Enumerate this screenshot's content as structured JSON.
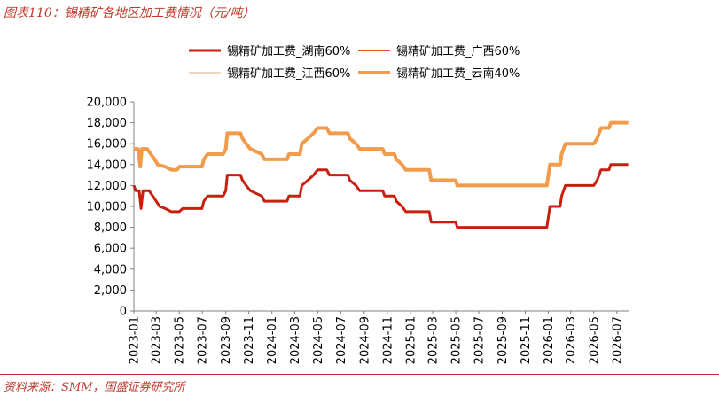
{
  "title": "图表110：锡精矿各地区加工费情况（元/吨）",
  "source": "资料来源：SMM，国盛证券研究所",
  "chart_data": {
    "type": "line",
    "ylim": [
      0,
      20000
    ],
    "yticks": [
      "0",
      "2,000",
      "4,000",
      "6,000",
      "8,000",
      "10,000",
      "12,000",
      "14,000",
      "16,000",
      "18,000",
      "20,000"
    ],
    "xtick_labels": [
      "2023-01",
      "2023-03",
      "2023-05",
      "2023-07",
      "2023-09",
      "2023-11",
      "2024-01",
      "2024-03",
      "2024-05",
      "2024-07",
      "2024-09",
      "2024-11",
      "2025-01",
      "2025-03",
      "2025-05",
      "2025-07",
      "2025-09",
      "2025-11",
      "2026-01",
      "2026-03",
      "2026-05",
      "2026-07"
    ],
    "legend_position": "top",
    "series": [
      {
        "name": "锡精矿加工费_湖南60%",
        "color": "#c8200e",
        "width": 3,
        "points": [
          [
            "2023-01-01",
            12000
          ],
          [
            "2023-01-06",
            11500
          ],
          [
            "2023-01-15",
            11500
          ],
          [
            "2023-01-20",
            9800
          ],
          [
            "2023-01-25",
            11500
          ],
          [
            "2023-02-10",
            11500
          ],
          [
            "2023-02-20",
            11000
          ],
          [
            "2023-03-01",
            10500
          ],
          [
            "2023-03-10",
            10000
          ],
          [
            "2023-03-25",
            9800
          ],
          [
            "2023-04-10",
            9500
          ],
          [
            "2023-05-01",
            9500
          ],
          [
            "2023-05-10",
            9800
          ],
          [
            "2023-06-30",
            9800
          ],
          [
            "2023-07-05",
            10500
          ],
          [
            "2023-07-15",
            11000
          ],
          [
            "2023-08-25",
            11000
          ],
          [
            "2023-09-01",
            11500
          ],
          [
            "2023-09-05",
            13000
          ],
          [
            "2023-10-10",
            13000
          ],
          [
            "2023-10-15",
            12500
          ],
          [
            "2023-10-25",
            12000
          ],
          [
            "2023-11-05",
            11500
          ],
          [
            "2023-12-05",
            11000
          ],
          [
            "2023-12-12",
            10500
          ],
          [
            "2024-02-10",
            10500
          ],
          [
            "2024-02-15",
            11000
          ],
          [
            "2024-03-15",
            11000
          ],
          [
            "2024-03-20",
            12000
          ],
          [
            "2024-04-05",
            12500
          ],
          [
            "2024-04-20",
            13000
          ],
          [
            "2024-05-01",
            13500
          ],
          [
            "2024-05-25",
            13500
          ],
          [
            "2024-06-01",
            13000
          ],
          [
            "2024-07-20",
            13000
          ],
          [
            "2024-07-25",
            12500
          ],
          [
            "2024-08-10",
            12000
          ],
          [
            "2024-08-20",
            11500
          ],
          [
            "2024-10-20",
            11500
          ],
          [
            "2024-10-25",
            11000
          ],
          [
            "2024-11-20",
            11000
          ],
          [
            "2024-11-25",
            10500
          ],
          [
            "2024-12-10",
            10000
          ],
          [
            "2024-12-20",
            9500
          ],
          [
            "2025-02-20",
            9500
          ],
          [
            "2025-02-25",
            8500
          ],
          [
            "2025-05-01",
            8500
          ],
          [
            "2025-05-05",
            8000
          ],
          [
            "2025-12-28",
            8000
          ],
          [
            "2026-01-05",
            10000
          ],
          [
            "2026-02-01",
            10000
          ],
          [
            "2026-02-05",
            11000
          ],
          [
            "2026-02-15",
            12000
          ],
          [
            "2026-05-01",
            12000
          ],
          [
            "2026-05-10",
            12500
          ],
          [
            "2026-05-20",
            13500
          ],
          [
            "2026-06-10",
            13500
          ],
          [
            "2026-06-15",
            14000
          ],
          [
            "2026-07-31",
            14000
          ]
        ]
      },
      {
        "name": "锡精矿加工费_广西60%",
        "color": "#e2582a",
        "width": 2,
        "points": [
          [
            "2023-01-01",
            11500
          ],
          [
            "2023-01-15",
            11500
          ],
          [
            "2023-01-20",
            9800
          ],
          [
            "2023-01-25",
            11500
          ],
          [
            "2023-02-10",
            11500
          ],
          [
            "2023-02-20",
            11000
          ],
          [
            "2023-03-01",
            10500
          ],
          [
            "2023-03-10",
            10000
          ],
          [
            "2023-03-25",
            9800
          ],
          [
            "2023-04-10",
            9500
          ],
          [
            "2023-05-01",
            9500
          ],
          [
            "2023-05-10",
            9800
          ],
          [
            "2023-06-30",
            9800
          ],
          [
            "2023-07-05",
            10500
          ],
          [
            "2023-07-15",
            11000
          ],
          [
            "2023-08-25",
            11000
          ],
          [
            "2023-09-01",
            11500
          ],
          [
            "2023-09-05",
            13000
          ],
          [
            "2023-10-10",
            13000
          ],
          [
            "2023-10-15",
            12500
          ],
          [
            "2023-10-25",
            12000
          ],
          [
            "2023-11-05",
            11500
          ],
          [
            "2023-12-05",
            11000
          ],
          [
            "2023-12-12",
            10500
          ],
          [
            "2024-02-10",
            10500
          ],
          [
            "2024-02-15",
            11000
          ],
          [
            "2024-03-15",
            11000
          ],
          [
            "2024-03-20",
            12000
          ],
          [
            "2024-04-05",
            12500
          ],
          [
            "2024-04-20",
            13000
          ],
          [
            "2024-05-01",
            13500
          ],
          [
            "2024-05-25",
            13500
          ],
          [
            "2024-06-01",
            13000
          ],
          [
            "2024-07-20",
            13000
          ],
          [
            "2024-07-25",
            12500
          ],
          [
            "2024-08-10",
            12000
          ],
          [
            "2024-08-20",
            11500
          ],
          [
            "2024-10-20",
            11500
          ],
          [
            "2024-10-25",
            11000
          ],
          [
            "2024-11-20",
            11000
          ],
          [
            "2024-11-25",
            10500
          ],
          [
            "2024-12-10",
            10000
          ],
          [
            "2024-12-20",
            9500
          ],
          [
            "2025-02-20",
            9500
          ],
          [
            "2025-02-25",
            8500
          ],
          [
            "2025-05-01",
            8500
          ],
          [
            "2025-05-05",
            8000
          ],
          [
            "2025-12-28",
            8000
          ],
          [
            "2026-01-05",
            10000
          ],
          [
            "2026-02-01",
            10000
          ],
          [
            "2026-02-05",
            11000
          ],
          [
            "2026-02-15",
            12000
          ],
          [
            "2026-05-01",
            12000
          ],
          [
            "2026-05-10",
            12500
          ],
          [
            "2026-05-20",
            13500
          ],
          [
            "2026-06-10",
            13500
          ],
          [
            "2026-06-15",
            14000
          ],
          [
            "2026-07-31",
            14000
          ]
        ]
      },
      {
        "name": "锡精矿加工费_江西60%",
        "color": "#e8c7a8",
        "width": 1,
        "points": [
          [
            "2023-01-01",
            11500
          ],
          [
            "2023-01-15",
            11500
          ],
          [
            "2023-01-20",
            9800
          ],
          [
            "2023-01-25",
            11500
          ],
          [
            "2023-02-10",
            11500
          ],
          [
            "2023-02-20",
            11000
          ],
          [
            "2023-03-01",
            10500
          ],
          [
            "2023-03-10",
            10000
          ],
          [
            "2023-03-25",
            9800
          ],
          [
            "2023-04-10",
            9500
          ],
          [
            "2023-05-01",
            9500
          ],
          [
            "2023-05-10",
            9800
          ],
          [
            "2023-06-30",
            9800
          ],
          [
            "2023-07-05",
            10500
          ],
          [
            "2023-07-15",
            11000
          ],
          [
            "2023-08-25",
            11000
          ],
          [
            "2023-09-01",
            11500
          ],
          [
            "2023-09-05",
            13000
          ],
          [
            "2023-10-10",
            13000
          ],
          [
            "2023-10-15",
            12500
          ],
          [
            "2023-10-25",
            12000
          ],
          [
            "2023-11-05",
            11500
          ],
          [
            "2023-12-05",
            11000
          ],
          [
            "2023-12-12",
            10500
          ],
          [
            "2024-02-10",
            10500
          ],
          [
            "2024-02-15",
            11000
          ],
          [
            "2024-03-15",
            11000
          ],
          [
            "2024-03-20",
            12000
          ],
          [
            "2024-04-05",
            12500
          ],
          [
            "2024-04-20",
            13000
          ],
          [
            "2024-05-01",
            13500
          ],
          [
            "2024-05-25",
            13500
          ],
          [
            "2024-06-01",
            13000
          ],
          [
            "2024-07-20",
            13000
          ],
          [
            "2024-07-25",
            12500
          ],
          [
            "2024-08-10",
            12000
          ],
          [
            "2024-08-20",
            11500
          ],
          [
            "2024-10-20",
            11500
          ],
          [
            "2024-10-25",
            11000
          ],
          [
            "2024-11-20",
            11000
          ],
          [
            "2024-11-25",
            10500
          ],
          [
            "2024-12-10",
            10000
          ],
          [
            "2024-12-20",
            9500
          ],
          [
            "2025-02-20",
            9500
          ],
          [
            "2025-02-25",
            8500
          ],
          [
            "2025-05-01",
            8500
          ],
          [
            "2025-05-05",
            8000
          ],
          [
            "2025-12-28",
            8000
          ],
          [
            "2026-01-05",
            10000
          ],
          [
            "2026-02-01",
            10000
          ],
          [
            "2026-02-05",
            11000
          ],
          [
            "2026-02-15",
            12000
          ],
          [
            "2026-05-01",
            12000
          ],
          [
            "2026-05-10",
            12500
          ],
          [
            "2026-05-20",
            13500
          ],
          [
            "2026-06-10",
            13500
          ],
          [
            "2026-06-15",
            14000
          ],
          [
            "2026-07-31",
            14000
          ]
        ]
      },
      {
        "name": "锡精矿加工费_云南40%",
        "color": "#f19b4c",
        "width": 4,
        "points": [
          [
            "2023-01-01",
            15500
          ],
          [
            "2023-01-12",
            15500
          ],
          [
            "2023-01-18",
            13800
          ],
          [
            "2023-01-22",
            15500
          ],
          [
            "2023-02-05",
            15500
          ],
          [
            "2023-02-15",
            15000
          ],
          [
            "2023-02-25",
            14500
          ],
          [
            "2023-03-05",
            14000
          ],
          [
            "2023-03-25",
            13800
          ],
          [
            "2023-04-10",
            13500
          ],
          [
            "2023-04-25",
            13500
          ],
          [
            "2023-05-01",
            13800
          ],
          [
            "2023-06-30",
            13800
          ],
          [
            "2023-07-05",
            14500
          ],
          [
            "2023-07-15",
            15000
          ],
          [
            "2023-08-25",
            15000
          ],
          [
            "2023-09-01",
            15500
          ],
          [
            "2023-09-05",
            17000
          ],
          [
            "2023-10-10",
            17000
          ],
          [
            "2023-10-15",
            16500
          ],
          [
            "2023-10-25",
            16000
          ],
          [
            "2023-11-05",
            15500
          ],
          [
            "2023-12-05",
            15000
          ],
          [
            "2023-12-12",
            14500
          ],
          [
            "2024-02-10",
            14500
          ],
          [
            "2024-02-15",
            15000
          ],
          [
            "2024-03-15",
            15000
          ],
          [
            "2024-03-20",
            16000
          ],
          [
            "2024-04-05",
            16500
          ],
          [
            "2024-04-20",
            17000
          ],
          [
            "2024-05-01",
            17500
          ],
          [
            "2024-05-25",
            17500
          ],
          [
            "2024-06-01",
            17000
          ],
          [
            "2024-07-20",
            17000
          ],
          [
            "2024-07-25",
            16500
          ],
          [
            "2024-08-10",
            16000
          ],
          [
            "2024-08-20",
            15500
          ],
          [
            "2024-10-20",
            15500
          ],
          [
            "2024-10-25",
            15000
          ],
          [
            "2024-11-20",
            15000
          ],
          [
            "2024-11-25",
            14500
          ],
          [
            "2024-12-10",
            14000
          ],
          [
            "2024-12-20",
            13500
          ],
          [
            "2025-02-20",
            13500
          ],
          [
            "2025-02-25",
            12500
          ],
          [
            "2025-05-01",
            12500
          ],
          [
            "2025-05-05",
            12000
          ],
          [
            "2025-12-28",
            12000
          ],
          [
            "2026-01-05",
            14000
          ],
          [
            "2026-02-01",
            14000
          ],
          [
            "2026-02-05",
            15000
          ],
          [
            "2026-02-15",
            16000
          ],
          [
            "2026-05-01",
            16000
          ],
          [
            "2026-05-10",
            16500
          ],
          [
            "2026-05-20",
            17500
          ],
          [
            "2026-06-10",
            17500
          ],
          [
            "2026-06-15",
            18000
          ],
          [
            "2026-07-31",
            18000
          ]
        ]
      }
    ]
  }
}
